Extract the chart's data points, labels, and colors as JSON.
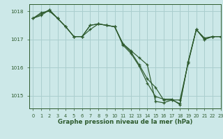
{
  "title": "Graphe pression niveau de la mer (hPa)",
  "bg_color": "#cce8e8",
  "grid_color": "#aacece",
  "line_color": "#2d5a2d",
  "xlim": [
    -0.5,
    23
  ],
  "ylim": [
    1014.55,
    1018.25
  ],
  "yticks": [
    1015,
    1016,
    1017,
    1018
  ],
  "xticks": [
    0,
    1,
    2,
    3,
    4,
    5,
    6,
    7,
    8,
    9,
    10,
    11,
    12,
    13,
    14,
    15,
    16,
    17,
    18,
    19,
    20,
    21,
    22,
    23
  ],
  "series": [
    [
      1017.75,
      1017.95,
      1018.0,
      1017.75,
      1017.45,
      1017.1,
      1017.1,
      1017.35,
      1017.55,
      1017.5,
      1017.45,
      1016.85,
      1016.6,
      1016.35,
      1016.1,
      1014.8,
      1014.75,
      1014.85,
      1014.85,
      1016.15,
      1017.35,
      1017.05,
      1017.1,
      1017.1
    ],
    [
      1017.75,
      1017.85,
      1018.05,
      1017.75,
      1017.45,
      1017.1,
      1017.1,
      1017.5,
      1017.55,
      1017.5,
      1017.45,
      1016.85,
      1016.55,
      1016.1,
      1015.6,
      1015.3,
      1014.85,
      1014.85,
      1014.72,
      1016.2,
      1017.35,
      1017.0,
      1017.1,
      1017.1
    ],
    [
      1017.75,
      1017.9,
      1018.05,
      1017.75,
      1017.45,
      1017.1,
      1017.1,
      1017.5,
      1017.55,
      1017.5,
      1017.45,
      1016.8,
      1016.5,
      1016.05,
      1015.45,
      1014.97,
      1014.88,
      1014.88,
      1014.68,
      1016.2,
      1017.35,
      1017.0,
      1017.1,
      1017.1
    ]
  ],
  "xlabel_fontsize": 6.2,
  "tick_fontsize": 5.2,
  "xtick_fontsize": 4.8
}
